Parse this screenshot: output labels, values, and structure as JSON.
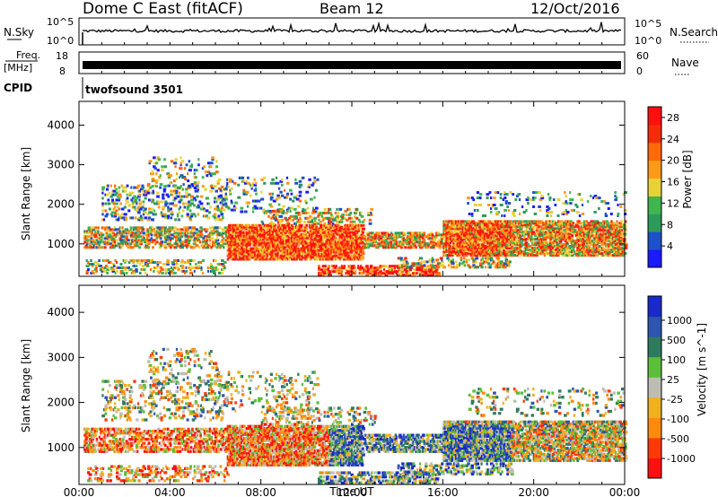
{
  "header": {
    "radar": "Dome C East (fitACF)",
    "beam": "Beam 12",
    "date": "12/Oct/2016"
  },
  "strips": {
    "nsky_label": "N.Sky",
    "nsky_ticks": [
      "10^5",
      "10^0"
    ],
    "nsearch_label": "N.Search",
    "nsearch_ticks": [
      "10^5",
      "10^0"
    ],
    "freq_label": "Freq.",
    "freq_unit": "[MHz]",
    "freq_ticks": [
      "18",
      "8"
    ],
    "nave_label": "Nave",
    "nave_ticks": [
      "60",
      "0"
    ],
    "cpid_label": "CPID",
    "cpid_text": "twofsound 3501"
  },
  "chart_data": [
    {
      "type": "heatmap",
      "name": "power",
      "xlabel": "Time UT",
      "ylabel": "Slant Range [km]",
      "xticks": [
        "00:00",
        "04:00",
        "08:00",
        "12:00",
        "16:00",
        "20:00",
        "00:00"
      ],
      "xlim_hours": [
        0,
        24
      ],
      "yticks": [
        1000,
        2000,
        3000,
        4000
      ],
      "ylim": [
        180,
        4600
      ],
      "colorbar_label": "Power [dB]",
      "colorbar_ticks": [
        4,
        8,
        12,
        16,
        20,
        24,
        28
      ],
      "colorbar_range": [
        0,
        30
      ],
      "colors": [
        "#1a1aff",
        "#1e50c8",
        "#2e9a5a",
        "#3fb64f",
        "#e8d23a",
        "#ff9a1a",
        "#ff6a0a",
        "#f52c0a",
        "#ff1010"
      ]
    },
    {
      "type": "heatmap",
      "name": "velocity",
      "xlabel": "Time UT",
      "ylabel": "Slant Range [km]",
      "xticks": [
        "00:00",
        "04:00",
        "08:00",
        "12:00",
        "16:00",
        "20:00",
        "00:00"
      ],
      "xlim_hours": [
        0,
        24
      ],
      "yticks": [
        1000,
        2000,
        3000,
        4000
      ],
      "ylim": [
        180,
        4600
      ],
      "colorbar_label": "Velocity [m s^-1]",
      "colorbar_ticks": [
        "1000",
        "500",
        "100",
        "25",
        "-25",
        "-100",
        "-500",
        "-1000"
      ],
      "colors": [
        "#1a2ac8",
        "#2e56b0",
        "#2f7a5c",
        "#5bbf3a",
        "#bdbdb4",
        "#f0b020",
        "#ff8a10",
        "#ff3a0a",
        "#ff1010"
      ]
    }
  ]
}
